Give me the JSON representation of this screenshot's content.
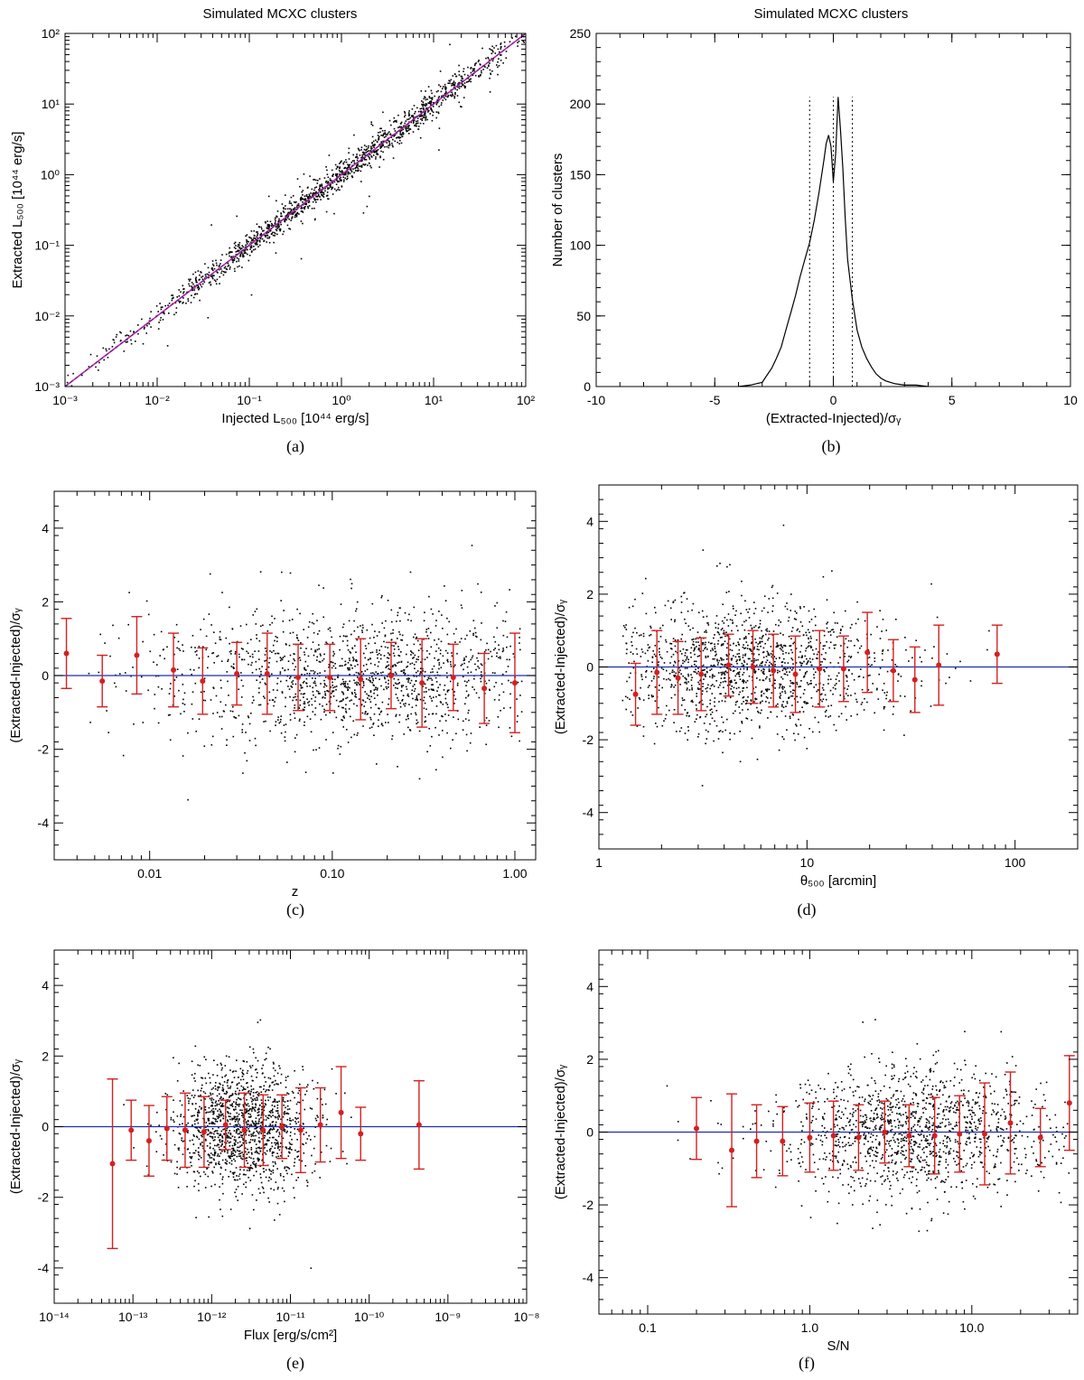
{
  "figure": {
    "description_free": true
  },
  "chart_data": [
    {
      "id": "a",
      "type": "scatter",
      "title": "Simulated MCXC clusters",
      "caption": "(a)",
      "xlabel": "Injected L₅₀₀ [10⁴⁴ erg/s]",
      "ylabel": "Extracted L₅₀₀ [10⁴⁴ erg/s]",
      "xscale": "log",
      "yscale": "log",
      "xlim": [
        0.001,
        100
      ],
      "ylim": [
        0.001,
        100
      ],
      "xticks": [
        0.001,
        0.01,
        0.1,
        1,
        10,
        100
      ],
      "xticklabels": [
        "10⁻³",
        "10⁻²",
        "10⁻¹",
        "10⁰",
        "10¹",
        "10²"
      ],
      "yticks": [
        0.001,
        0.01,
        0.1,
        1,
        10,
        100
      ],
      "yticklabels": [
        "10⁻³",
        "10⁻²",
        "10⁻¹",
        "10⁰",
        "10¹",
        "10²"
      ],
      "reference_line": {
        "kind": "one_to_one",
        "color": "#e0209a"
      },
      "fit_line": {
        "kind": "one_to_one",
        "color": "#1a2fb0"
      },
      "scatter": {
        "kind": "identity",
        "n": 1500,
        "xrange": [
          0.001,
          100
        ],
        "xcenter": 0.8,
        "xspread": 1.1,
        "scatter_dex": 0.09,
        "color": "#000000"
      }
    },
    {
      "id": "b",
      "type": "line",
      "title": "Simulated MCXC clusters",
      "caption": "(b)",
      "xlabel": "(Extracted-Injected)/σᵧ",
      "ylabel": "Number of clusters",
      "xlim": [
        -10,
        10
      ],
      "ylim": [
        0,
        250
      ],
      "xticks": [
        -10,
        -5,
        0,
        5,
        10
      ],
      "xticklabels": [
        "-10",
        "-5",
        "0",
        "5",
        "10"
      ],
      "yticks": [
        0,
        50,
        100,
        150,
        200,
        250
      ],
      "yticklabels": [
        "0",
        "50",
        "100",
        "150",
        "200",
        "250"
      ],
      "x": [
        -4.0,
        -3.5,
        -3.0,
        -2.8,
        -2.6,
        -2.4,
        -2.2,
        -2.0,
        -1.8,
        -1.6,
        -1.4,
        -1.2,
        -1.0,
        -0.8,
        -0.6,
        -0.4,
        -0.3,
        -0.2,
        -0.1,
        0.0,
        0.1,
        0.2,
        0.3,
        0.4,
        0.5,
        0.6,
        0.8,
        1.0,
        1.2,
        1.4,
        1.6,
        1.8,
        2.0,
        2.2,
        2.4,
        2.6,
        3.0,
        3.5,
        4.0
      ],
      "values": [
        0,
        1,
        3,
        8,
        13,
        20,
        28,
        40,
        52,
        64,
        78,
        90,
        102,
        118,
        138,
        160,
        172,
        178,
        170,
        145,
        165,
        205,
        182,
        155,
        120,
        90,
        62,
        40,
        28,
        20,
        14,
        9,
        6,
        4,
        3,
        2,
        1,
        1,
        0
      ],
      "vlines": [
        -1.0,
        0.0,
        0.8
      ],
      "vline_top": 205
    },
    {
      "id": "c",
      "type": "scatter",
      "caption": "(c)",
      "xlabel": "z",
      "ylabel": "(Extracted-Injected)/σᵧ",
      "xscale": "log",
      "xlim": [
        0.003,
        1.3
      ],
      "ylim": [
        -5,
        5
      ],
      "xticks": [
        0.01,
        0.1,
        1.0
      ],
      "xticklabels": [
        "0.01",
        "0.10",
        "1.00"
      ],
      "yticks": [
        -4,
        -2,
        0,
        2,
        4
      ],
      "yticklabels": [
        "-4",
        "-2",
        "0",
        "2",
        "4"
      ],
      "hline": 0,
      "scatter": {
        "kind": "residual",
        "n": 1400,
        "xrange": [
          0.004,
          1.1
        ],
        "xcenter": 0.15,
        "xspread": 0.55,
        "sigma": 0.95
      },
      "binned": {
        "x": [
          0.0035,
          0.0055,
          0.0085,
          0.0135,
          0.0195,
          0.03,
          0.044,
          0.065,
          0.097,
          0.143,
          0.21,
          0.31,
          0.46,
          0.68,
          1.0
        ],
        "y": [
          0.6,
          -0.15,
          0.55,
          0.15,
          -0.15,
          0.05,
          0.05,
          -0.05,
          -0.05,
          -0.1,
          0.0,
          -0.2,
          -0.05,
          -0.35,
          -0.2
        ],
        "err": [
          0.95,
          0.7,
          1.05,
          1.0,
          0.9,
          0.85,
          1.1,
          0.9,
          0.9,
          1.1,
          0.9,
          1.2,
          0.9,
          0.95,
          1.35
        ]
      }
    },
    {
      "id": "d",
      "type": "scatter",
      "caption": "(d)",
      "xlabel": "θ₅₀₀ [arcmin]",
      "ylabel": "(Extracted-Injected)/σᵧ",
      "xscale": "log",
      "xlim": [
        1,
        200
      ],
      "ylim": [
        -5,
        5
      ],
      "xticks": [
        1,
        10,
        100
      ],
      "xticklabels": [
        "1",
        "10",
        "100"
      ],
      "yticks": [
        -4,
        -2,
        0,
        2,
        4
      ],
      "yticklabels": [
        "-4",
        "-2",
        "0",
        "2",
        "4"
      ],
      "hline": 0,
      "scatter": {
        "kind": "residual",
        "n": 1400,
        "xrange": [
          1.3,
          100
        ],
        "xcenter": 5.0,
        "xspread": 0.35,
        "sigma": 0.9
      },
      "binned": {
        "x": [
          1.5,
          1.9,
          2.4,
          3.1,
          4.2,
          5.5,
          6.9,
          8.8,
          11.5,
          15.0,
          19.5,
          26,
          33,
          43,
          82
        ],
        "y": [
          -0.75,
          -0.15,
          -0.3,
          -0.2,
          0.05,
          0.0,
          -0.1,
          -0.2,
          -0.05,
          -0.05,
          0.4,
          -0.1,
          -0.35,
          0.05,
          0.35
        ],
        "err": [
          0.85,
          1.15,
          1.0,
          1.0,
          0.85,
          1.0,
          1.0,
          1.05,
          1.05,
          0.9,
          1.1,
          0.85,
          0.9,
          1.1,
          0.8
        ]
      }
    },
    {
      "id": "e",
      "type": "scatter",
      "caption": "(e)",
      "xlabel": "Flux [erg/s/cm²]",
      "ylabel": "(Extracted-Injected)/σᵧ",
      "xscale": "log",
      "xlim": [
        1e-14,
        1e-08
      ],
      "ylim": [
        -5,
        5
      ],
      "xticks": [
        1e-14,
        1e-13,
        1e-12,
        1e-11,
        1e-10,
        1e-09,
        1e-08
      ],
      "xticklabels": [
        "10⁻¹⁴",
        "10⁻¹³",
        "10⁻¹²",
        "10⁻¹¹",
        "10⁻¹⁰",
        "10⁻⁹",
        "10⁻⁸"
      ],
      "yticks": [
        -4,
        -2,
        0,
        2,
        4
      ],
      "yticklabels": [
        "-4",
        "-2",
        "0",
        "2",
        "4"
      ],
      "hline": 0,
      "scatter": {
        "kind": "residual",
        "n": 1400,
        "xrange": [
          5e-14,
          3e-10
        ],
        "xcenter": 2.5e-12,
        "xspread": 0.45,
        "sigma": 0.9
      },
      "binned": {
        "x": [
          5.5e-14,
          9.5e-14,
          1.6e-13,
          2.7e-13,
          4.6e-13,
          8e-13,
          1.5e-12,
          2.6e-12,
          4.5e-12,
          7.8e-12,
          1.35e-11,
          2.4e-11,
          4.4e-11,
          7.8e-11,
          4.3e-10
        ],
        "y": [
          -1.05,
          -0.1,
          -0.4,
          -0.05,
          -0.1,
          -0.15,
          0.05,
          -0.1,
          -0.1,
          0.0,
          -0.1,
          0.05,
          0.4,
          -0.2,
          0.05
        ],
        "err": [
          2.4,
          0.85,
          1.0,
          0.9,
          1.05,
          1.0,
          0.7,
          1.05,
          1.0,
          0.9,
          1.2,
          1.05,
          1.3,
          0.75,
          1.25
        ]
      }
    },
    {
      "id": "f",
      "type": "scatter",
      "caption": "(f)",
      "xlabel": "S/N",
      "ylabel": "(Extracted-Injected)/σᵧ",
      "xscale": "log",
      "xlim": [
        0.05,
        45
      ],
      "ylim": [
        -5,
        5
      ],
      "xticks": [
        0.1,
        1.0,
        10.0
      ],
      "xticklabels": [
        "0.1",
        "1.0",
        "10.0"
      ],
      "yticks": [
        -4,
        -2,
        0,
        2,
        4
      ],
      "yticklabels": [
        "-4",
        "-2",
        "0",
        "2",
        "4"
      ],
      "hline": 0,
      "scatter": {
        "kind": "residual",
        "n": 1400,
        "xrange": [
          0.06,
          40
        ],
        "xcenter": 4.5,
        "xspread": 0.4,
        "sigma": 0.9
      },
      "binned": {
        "x": [
          0.2,
          0.33,
          0.47,
          0.68,
          1.0,
          1.4,
          2.0,
          2.9,
          4.1,
          5.9,
          8.4,
          12.0,
          17.3,
          26.5,
          40.0
        ],
        "y": [
          0.1,
          -0.5,
          -0.25,
          -0.25,
          -0.15,
          -0.1,
          -0.15,
          0.0,
          -0.1,
          -0.1,
          -0.05,
          -0.05,
          0.25,
          -0.15,
          0.8
        ],
        "err": [
          0.85,
          1.55,
          1.0,
          0.95,
          0.95,
          0.95,
          0.9,
          0.85,
          0.85,
          1.05,
          1.05,
          1.4,
          1.4,
          0.8,
          1.3
        ]
      }
    }
  ]
}
